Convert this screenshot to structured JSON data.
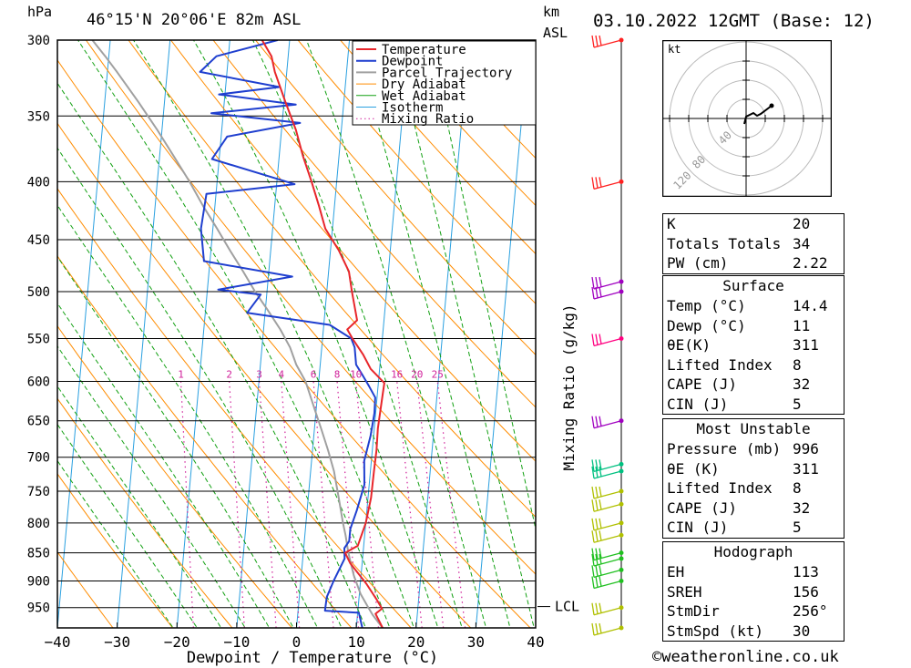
{
  "header": {
    "hpa_unit": "hPa",
    "location": "46°15'N  20°06'E  82m  ASL",
    "km_unit": "km",
    "asl_unit": "ASL",
    "datetime": "03.10.2022  12GMT  (Base: 12)"
  },
  "chart_data": {
    "type": "line",
    "title": "46°15'N  20°06'E  82m  ASL",
    "xlabel": "Dewpoint / Temperature (°C)",
    "ylabel": "hPa",
    "xlim": [
      -40,
      40
    ],
    "ylim": [
      990,
      300
    ],
    "x_ticks": [
      "−40",
      "−30",
      "−20",
      "−10",
      "0",
      "10",
      "20",
      "30",
      "40"
    ],
    "y_ticks": [
      "300",
      "350",
      "400",
      "450",
      "500",
      "550",
      "600",
      "650",
      "700",
      "750",
      "800",
      "850",
      "900",
      "950"
    ],
    "pressure_levels": [
      300,
      350,
      400,
      450,
      500,
      550,
      600,
      650,
      700,
      750,
      800,
      850,
      900,
      950
    ],
    "mixing_ratio_label": "Mixing Ratio (g/kg)",
    "mixing_ratio_values": [
      "1",
      "2",
      "3",
      "4",
      "6",
      "8",
      "10",
      "16",
      "20",
      "25"
    ],
    "lcl_label": "LCL",
    "legend": [
      "Temperature",
      "Dewpoint",
      "Parcel Trajectory",
      "Dry Adiabat",
      "Wet Adiabat",
      "Isotherm",
      "Mixing Ratio"
    ],
    "legend_position": "top-right",
    "colors": {
      "temperature": "#e8262b",
      "dewpoint": "#1f3fcf",
      "parcel": "#a0a0a0",
      "dry_adiabat": "#ff8c00",
      "wet_adiabat": "#12a012",
      "isotherm": "#2aa0e0",
      "mixing_ratio": "#d0209a"
    },
    "series": [
      {
        "name": "Temperature",
        "points": [
          [
            14.4,
            990
          ],
          [
            13,
            962
          ],
          [
            14,
            952
          ],
          [
            13,
            935
          ],
          [
            11,
            905
          ],
          [
            8,
            868
          ],
          [
            7,
            850
          ],
          [
            9,
            838
          ],
          [
            10,
            800
          ],
          [
            10.5,
            760
          ],
          [
            10.6,
            720
          ],
          [
            10.7,
            690
          ],
          [
            10.6,
            660
          ],
          [
            10.9,
            615
          ],
          [
            11,
            602
          ],
          [
            8.5,
            585
          ],
          [
            7,
            568
          ],
          [
            5,
            550
          ],
          [
            4,
            540
          ],
          [
            5.5,
            530
          ],
          [
            4.2,
            500
          ],
          [
            3.4,
            480
          ],
          [
            1.4,
            460
          ],
          [
            -1.2,
            440
          ],
          [
            -2.6,
            420
          ],
          [
            -4.2,
            400
          ],
          [
            -6,
            380
          ],
          [
            -7.6,
            360
          ],
          [
            -9.8,
            340
          ],
          [
            -12,
            320
          ],
          [
            -12.8,
            310
          ],
          [
            -14.6,
            300
          ]
        ]
      },
      {
        "name": "Dewpoint",
        "points": [
          [
            11,
            990
          ],
          [
            10.2,
            960
          ],
          [
            4.5,
            956
          ],
          [
            4.6,
            930
          ],
          [
            5.5,
            900
          ],
          [
            7,
            860
          ],
          [
            6.8,
            842
          ],
          [
            7.5,
            830
          ],
          [
            7.5,
            810
          ],
          [
            8.3,
            780
          ],
          [
            9.2,
            740
          ],
          [
            8.8,
            705
          ],
          [
            9.5,
            670
          ],
          [
            9.8,
            640
          ],
          [
            9.7,
            620
          ],
          [
            8.5,
            606
          ],
          [
            7,
            590
          ],
          [
            6,
            580
          ],
          [
            5.5,
            560
          ],
          [
            4.8,
            550
          ],
          [
            1,
            535
          ],
          [
            -13,
            522
          ],
          [
            -11,
            503
          ],
          [
            -18.2,
            498
          ],
          [
            -6,
            485
          ],
          [
            -21,
            470
          ],
          [
            -22,
            440
          ],
          [
            -21.6,
            410
          ],
          [
            -7,
            402
          ],
          [
            -21.2,
            382
          ],
          [
            -19,
            365
          ],
          [
            -7,
            355
          ],
          [
            -22,
            348
          ],
          [
            -8,
            342
          ],
          [
            -21,
            335
          ],
          [
            -11,
            330
          ],
          [
            -24.5,
            320
          ],
          [
            -22,
            310
          ],
          [
            -12,
            300
          ]
        ]
      },
      {
        "name": "Parcel Trajectory",
        "points": [
          [
            14.4,
            990
          ],
          [
            12.6,
            965
          ],
          [
            11.6,
            948
          ],
          [
            10.2,
            924
          ],
          [
            8.8,
            890
          ],
          [
            8,
            865
          ],
          [
            7.5,
            848
          ],
          [
            6.8,
            820
          ],
          [
            6.2,
            800
          ],
          [
            5.1,
            760
          ],
          [
            3.9,
            720
          ],
          [
            2.6,
            690
          ],
          [
            1.1,
            660
          ],
          [
            -0.2,
            636
          ],
          [
            -2.2,
            600
          ],
          [
            -4,
            580
          ],
          [
            -5.3,
            560
          ],
          [
            -7.2,
            540
          ],
          [
            -9.5,
            520
          ],
          [
            -12,
            500
          ],
          [
            -14.3,
            480
          ],
          [
            -16.8,
            460
          ],
          [
            -19.3,
            440
          ],
          [
            -22,
            420
          ],
          [
            -24.6,
            400
          ],
          [
            -27.6,
            380
          ],
          [
            -30.8,
            360
          ],
          [
            -34.4,
            340
          ],
          [
            -38.4,
            320
          ],
          [
            -40.6,
            310
          ],
          [
            -43,
            300
          ]
        ]
      }
    ],
    "wind_barbs": [
      300,
      400,
      490,
      500,
      550,
      650,
      710,
      720,
      750,
      770,
      800,
      820,
      850,
      860,
      880,
      900,
      950,
      990
    ]
  },
  "hodograph": {
    "unit": "kt",
    "ring_labels": [
      "40",
      "80",
      "120"
    ]
  },
  "indices": {
    "top": [
      {
        "label": "K",
        "value": "20"
      },
      {
        "label": "Totals Totals",
        "value": "34"
      },
      {
        "label": "PW (cm)",
        "value": "2.22"
      }
    ],
    "surface": {
      "title": "Surface",
      "rows": [
        {
          "label": "Temp (°C)",
          "value": "14.4"
        },
        {
          "label": "Dewp (°C)",
          "value": "11"
        },
        {
          "label": "θE(K)",
          "value": "311"
        },
        {
          "label": "Lifted Index",
          "value": "8"
        },
        {
          "label": "CAPE (J)",
          "value": "32"
        },
        {
          "label": "CIN (J)",
          "value": "5"
        }
      ]
    },
    "most_unstable": {
      "title": "Most Unstable",
      "rows": [
        {
          "label": "Pressure (mb)",
          "value": "996"
        },
        {
          "label": "θE (K)",
          "value": "311"
        },
        {
          "label": "Lifted Index",
          "value": "8"
        },
        {
          "label": "CAPE (J)",
          "value": "32"
        },
        {
          "label": "CIN (J)",
          "value": "5"
        }
      ]
    },
    "hodograph": {
      "title": "Hodograph",
      "rows": [
        {
          "label": "EH",
          "value": "113"
        },
        {
          "label": "SREH",
          "value": "156"
        },
        {
          "label": "StmDir",
          "value": "256°"
        },
        {
          "label": "StmSpd (kt)",
          "value": "30"
        }
      ]
    }
  },
  "footer": {
    "copyright": "©weatheronline.co.uk"
  }
}
